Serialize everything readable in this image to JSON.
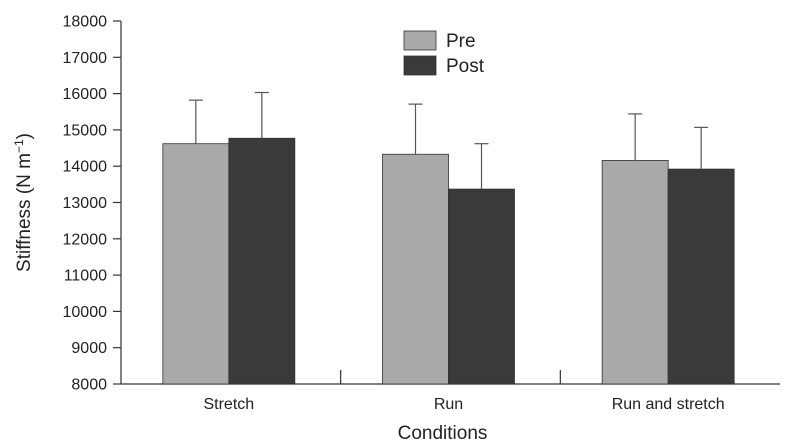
{
  "chart_data": {
    "type": "bar",
    "xlabel": "Conditions",
    "ylabel": "Stiffness (N m",
    "ylabel_superscript": "−1",
    "ylabel_close": ")",
    "ylim": [
      8000,
      18000
    ],
    "yticks": [
      8000,
      9000,
      10000,
      11000,
      12000,
      13000,
      14000,
      15000,
      16000,
      17000,
      18000
    ],
    "ytick_labels": [
      "8000",
      "9000",
      "10000",
      "11000",
      "12000",
      "13000",
      "14000",
      "15000",
      "16000",
      "17000",
      "18000"
    ],
    "categories": [
      "Stretch",
      "Run",
      "Run and stretch"
    ],
    "series": [
      {
        "name": "Pre",
        "color": "#a9a9a9",
        "values": [
          14620,
          14330,
          14160
        ],
        "errors": [
          1200,
          1380,
          1280
        ]
      },
      {
        "name": "Post",
        "color": "#3a3a3a",
        "values": [
          14770,
          13370,
          13920
        ],
        "errors": [
          1260,
          1250,
          1150
        ]
      }
    ],
    "legend_position": "top-center",
    "grid": false
  }
}
